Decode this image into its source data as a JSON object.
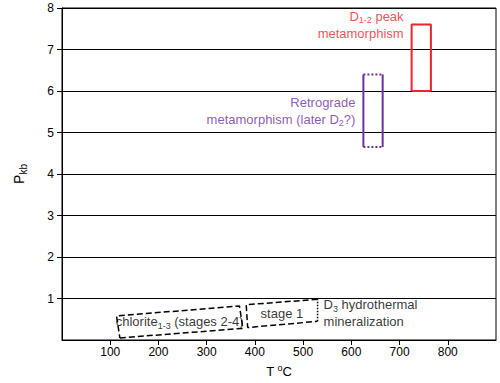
{
  "chart_data": {
    "type": "line",
    "xlabel": [
      [
        {
          "text": "T "
        },
        {
          "sup": "o"
        },
        {
          "text": "C"
        }
      ]
    ],
    "ylabel": [
      [
        {
          "text": "P"
        },
        {
          "sub": "kb"
        }
      ]
    ],
    "xlim": [
      0,
      900
    ],
    "xticks": [
      100,
      200,
      300,
      400,
      500,
      600,
      700,
      800
    ],
    "ylim": [
      0,
      8
    ],
    "yticks": [
      1,
      2,
      3,
      4,
      5,
      6,
      7,
      8
    ],
    "grid": "y",
    "regions": [
      {
        "color": "#000000",
        "label": [
          [
            {
              "text": "chlorite"
            },
            {
              "sub": "1-3"
            },
            {
              "text": " (stages 2-4)"
            }
          ]
        ],
        "edges": [
          {
            "line_style": "dashed",
            "points": [
              [
                120,
                0.05
              ],
              [
                375,
                0.28
              ],
              [
                368,
                0.82
              ],
              [
                113,
                0.58
              ],
              [
                120,
                0.05
              ]
            ]
          }
        ]
      },
      {
        "color": "#000000",
        "label": [
          [
            {
              "text": "stage 1"
            }
          ]
        ],
        "edges": [
          {
            "line_style": "dashed",
            "points": [
              [
                530,
                0.98
              ],
              [
                382,
                0.85
              ],
              [
                385,
                0.3
              ],
              [
                530,
                0.45
              ]
            ]
          },
          {
            "line_style": "dotted",
            "points": [
              [
                530,
                0.45
              ],
              [
                530,
                0.98
              ]
            ]
          }
        ]
      },
      {
        "color": "#7030a0",
        "label": [
          [
            {
              "text": "Retrograde"
            }
          ],
          [
            {
              "text": "metamorphism (later D"
            },
            {
              "sub": "2"
            },
            {
              "text": "?)"
            }
          ]
        ],
        "edges": [
          {
            "line_style": "solid",
            "points": [
              [
                625,
                4.65
              ],
              [
                625,
                6.4
              ]
            ]
          },
          {
            "line_style": "solid",
            "points": [
              [
                665,
                4.65
              ],
              [
                665,
                6.4
              ]
            ]
          },
          {
            "line_style": "dotted",
            "points": [
              [
                625,
                6.4
              ],
              [
                665,
                6.4
              ]
            ]
          },
          {
            "line_style": "dotted",
            "points": [
              [
                625,
                4.65
              ],
              [
                665,
                4.65
              ]
            ]
          }
        ]
      },
      {
        "color": "#e8262b",
        "label": [
          [
            {
              "text": "D"
            },
            {
              "sub": "1-2"
            },
            {
              "text": " peak"
            }
          ],
          [
            {
              "text": "metamorphism"
            }
          ]
        ],
        "edges": [
          {
            "line_style": "solid",
            "points": [
              [
                725,
                6.0
              ],
              [
                765,
                6.0
              ],
              [
                765,
                7.6
              ],
              [
                725,
                7.6
              ],
              [
                725,
                6.0
              ]
            ]
          }
        ]
      }
    ],
    "annotations": [
      {
        "color": "#000000",
        "label": [
          [
            {
              "text": "D"
            },
            {
              "sub": "3"
            },
            {
              "text": " hydrothermal"
            }
          ],
          [
            {
              "text": "mineralization"
            }
          ]
        ]
      }
    ]
  }
}
